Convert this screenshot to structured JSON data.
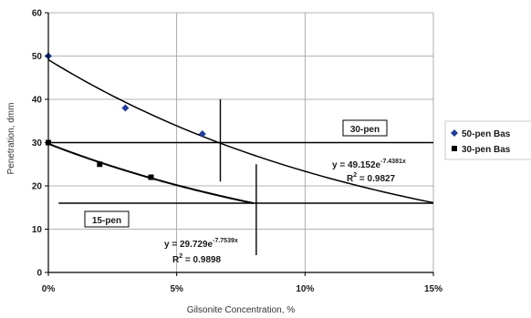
{
  "chart_data": {
    "type": "scatter",
    "title": "",
    "xlabel": "Gilsonite Concentration, %",
    "ylabel": "Penetration, dmm",
    "xlim": [
      0,
      0.15
    ],
    "ylim": [
      0,
      60
    ],
    "x_ticks": [
      0,
      0.05,
      0.1,
      0.15
    ],
    "x_tick_labels": [
      "0%",
      "5%",
      "10%",
      "15%"
    ],
    "y_ticks": [
      0,
      10,
      20,
      30,
      40,
      50,
      60
    ],
    "y_tick_labels": [
      "0",
      "10",
      "20",
      "30",
      "40",
      "50",
      "60"
    ],
    "grid": true,
    "legend_position": "right",
    "series": [
      {
        "name": "50-pen Bas",
        "marker": "diamond",
        "color": "#1f3d99",
        "points": [
          [
            0,
            50
          ],
          [
            0.03,
            38
          ],
          [
            0.06,
            32
          ]
        ],
        "trendline": {
          "a": 49.152,
          "b": -7.4381,
          "x_range": [
            0,
            0.15
          ]
        }
      },
      {
        "name": "30-pen Bas",
        "marker": "square",
        "color": "#000000",
        "points": [
          [
            0,
            30
          ],
          [
            0.02,
            25
          ],
          [
            0.04,
            22
          ]
        ],
        "trendline": {
          "a": 29.729,
          "b": -7.7539,
          "x_range": [
            0,
            0.08
          ]
        }
      }
    ],
    "reference_lines": [
      {
        "orientation": "horizontal",
        "y": 30,
        "label": "30-pen"
      },
      {
        "orientation": "horizontal",
        "y": 16,
        "label": "15-pen"
      },
      {
        "orientation": "vertical",
        "x": 0.067,
        "y_range": [
          21,
          40
        ]
      },
      {
        "orientation": "vertical",
        "x": 0.081,
        "y_range": [
          4,
          25
        ]
      }
    ],
    "equations": [
      {
        "main": "y = 49.152e",
        "exp": "-7.4381x",
        "r2_prefix": "R",
        "r2_sup": "2",
        "r2_value": " = 0.9827"
      },
      {
        "main": "y = 29.729e",
        "exp": "-7.7539x",
        "r2_prefix": "R",
        "r2_sup": "2",
        "r2_value": " = 0.9898"
      }
    ]
  }
}
